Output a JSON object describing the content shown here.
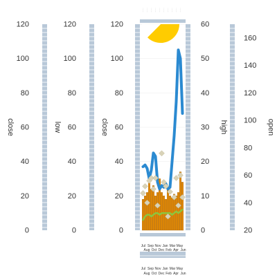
{
  "chart_data": {
    "type": "bar+line+scatter",
    "x_ticks_top": [
      "Jul",
      "Sep",
      "Nov",
      "Jan",
      "Mar",
      "May"
    ],
    "x_ticks_bottom": [
      "Aug",
      "Oct",
      "Dec",
      "Feb",
      "Apr",
      "Jun"
    ],
    "axes": {
      "close_outer": {
        "label": "close",
        "ticks": [
          "0",
          "20",
          "40",
          "60",
          "80",
          "100",
          "120"
        ],
        "ylim": [
          0,
          120
        ]
      },
      "low": {
        "label": "low",
        "ticks": [
          "0",
          "20",
          "40",
          "60",
          "80",
          "100",
          "120"
        ],
        "ylim": [
          0,
          120
        ]
      },
      "close_inner": {
        "label": "close",
        "ticks": [
          "0",
          "20",
          "40",
          "60",
          "80",
          "100",
          "120"
        ],
        "ylim": [
          0,
          120
        ]
      },
      "high": {
        "label": "high",
        "ticks": [
          "0",
          "10",
          "20",
          "30",
          "40",
          "50",
          "60"
        ],
        "ylim": [
          0,
          60
        ]
      },
      "open": {
        "label": "open",
        "ticks": [
          "20",
          "40",
          "60",
          "80",
          "100",
          "120",
          "140",
          "160"
        ],
        "ylim": [
          20,
          170
        ]
      }
    },
    "bars": [
      18,
      20,
      22,
      28,
      24,
      26,
      20,
      22,
      30,
      22,
      20,
      18,
      24,
      20,
      19,
      21,
      20,
      22,
      34,
      28
    ],
    "bars_axis": "low",
    "line_blue": {
      "axis": "close_inner",
      "values": [
        37,
        38,
        36,
        30,
        35,
        45,
        43,
        28,
        24,
        26,
        25,
        27,
        24,
        25,
        40,
        55,
        75,
        105,
        100,
        68
      ]
    },
    "line_green": {
      "axis": "low",
      "values": [
        6,
        8,
        9,
        9,
        8,
        9,
        10,
        10,
        9,
        10,
        10,
        10,
        10,
        10,
        9,
        10,
        11,
        10,
        11,
        12
      ]
    },
    "scatter": {
      "axis": "open",
      "points": [
        {
          "i": 0,
          "v": 47
        },
        {
          "i": 1,
          "v": 52
        },
        {
          "i": 2,
          "v": 40
        },
        {
          "i": 3,
          "v": 56
        },
        {
          "i": 4,
          "v": 58
        },
        {
          "i": 5,
          "v": 50
        },
        {
          "i": 6,
          "v": 58
        },
        {
          "i": 7,
          "v": 38
        },
        {
          "i": 9,
          "v": 76
        },
        {
          "i": 10,
          "v": 55
        },
        {
          "i": 11,
          "v": 52
        },
        {
          "i": 12,
          "v": 30
        },
        {
          "i": 13,
          "v": 48
        },
        {
          "i": 15,
          "v": 44
        },
        {
          "i": 16,
          "v": 58
        },
        {
          "i": 17,
          "v": 38
        },
        {
          "i": 18,
          "v": 60
        },
        {
          "i": 19,
          "v": 44
        }
      ]
    },
    "pie": {
      "slices": [
        75,
        25
      ],
      "colors": [
        "#ffcc00",
        "#ffffff"
      ]
    },
    "colors": {
      "bar": "#e58a00",
      "bar_stroke": "#a25d00",
      "line_blue": "#2b8ad1",
      "line_green": "#8cc63f",
      "marker": "#d9d3b8",
      "axis_band": "#b8c8d8",
      "tick_text": "#333333"
    }
  }
}
